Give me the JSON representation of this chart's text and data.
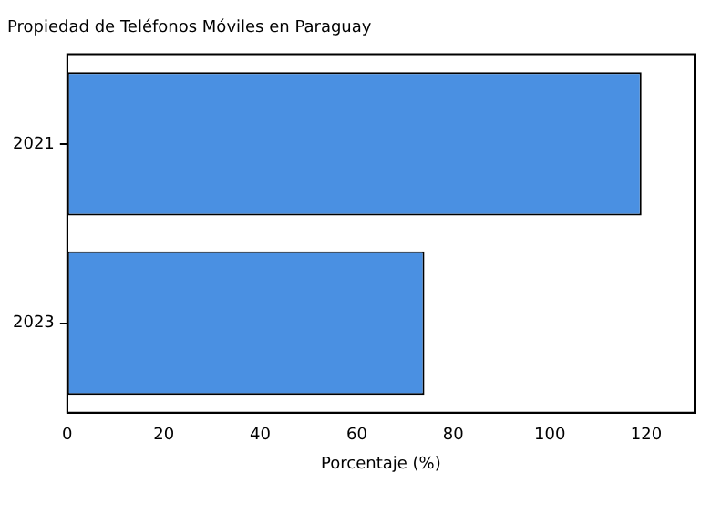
{
  "chart_data": {
    "type": "bar",
    "orientation": "horizontal",
    "title": "Propiedad de Teléfonos Móviles en Paraguay",
    "xlabel": "Porcentaje (%)",
    "categories": [
      "2021",
      "2023"
    ],
    "values": [
      119,
      74
    ],
    "color": "#4a90e2",
    "xlim": [
      0,
      130
    ],
    "xticks": [
      0,
      20,
      40,
      60,
      80,
      100,
      120
    ],
    "grid": false,
    "legend": false
  }
}
